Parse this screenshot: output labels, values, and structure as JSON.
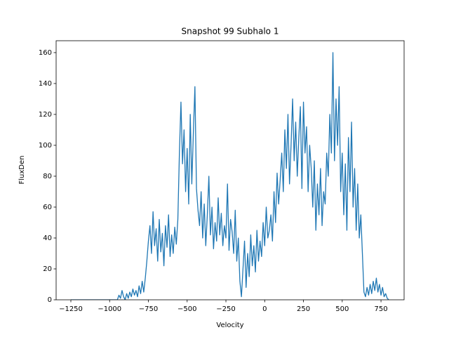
{
  "chart_data": {
    "type": "line",
    "title": "Snapshot 99 Subhalo 1",
    "xlabel": "Velocity",
    "ylabel": "FluxDen",
    "xlim": [
      -1345,
      899
    ],
    "ylim": [
      0,
      167.7
    ],
    "xticks": [
      {
        "value": -1250,
        "label": "−1250"
      },
      {
        "value": -1000,
        "label": "−1000"
      },
      {
        "value": -750,
        "label": "−750"
      },
      {
        "value": -500,
        "label": "−500"
      },
      {
        "value": -250,
        "label": "−250"
      },
      0,
      250,
      500,
      750
    ],
    "yticks": [
      0,
      20,
      40,
      60,
      80,
      100,
      120,
      140,
      160
    ],
    "series": [
      {
        "color": "#1f77b4",
        "x": [
          -1250,
          -1240,
          -1230,
          -1220,
          -1210,
          -1200,
          -1190,
          -1180,
          -1170,
          -1160,
          -1150,
          -1140,
          -1130,
          -1120,
          -1110,
          -1100,
          -1090,
          -1080,
          -1070,
          -1060,
          -1050,
          -1040,
          -1030,
          -1020,
          -1010,
          -1000,
          -990,
          -980,
          -970,
          -960,
          -950,
          -940,
          -930,
          -920,
          -910,
          -900,
          -890,
          -880,
          -870,
          -860,
          -850,
          -840,
          -830,
          -820,
          -810,
          -800,
          -790,
          -780,
          -770,
          -760,
          -750,
          -740,
          -730,
          -720,
          -710,
          -700,
          -690,
          -680,
          -670,
          -660,
          -650,
          -640,
          -630,
          -620,
          -610,
          -600,
          -590,
          -580,
          -570,
          -560,
          -550,
          -540,
          -530,
          -520,
          -510,
          -500,
          -490,
          -480,
          -470,
          -460,
          -450,
          -440,
          -430,
          -420,
          -410,
          -400,
          -390,
          -380,
          -370,
          -360,
          -350,
          -340,
          -330,
          -320,
          -310,
          -300,
          -290,
          -280,
          -270,
          -260,
          -250,
          -240,
          -230,
          -220,
          -210,
          -200,
          -190,
          -180,
          -170,
          -160,
          -150,
          -140,
          -130,
          -120,
          -110,
          -100,
          -90,
          -80,
          -70,
          -60,
          -50,
          -40,
          -30,
          -20,
          -10,
          0,
          10,
          20,
          30,
          40,
          50,
          60,
          70,
          80,
          90,
          100,
          110,
          120,
          130,
          140,
          150,
          160,
          170,
          180,
          190,
          200,
          210,
          220,
          230,
          240,
          250,
          260,
          270,
          280,
          290,
          300,
          310,
          320,
          330,
          340,
          350,
          360,
          370,
          380,
          390,
          400,
          410,
          420,
          430,
          440,
          450,
          460,
          470,
          480,
          490,
          500,
          510,
          520,
          530,
          540,
          550,
          560,
          570,
          580,
          590,
          600,
          610,
          620,
          630,
          640,
          650,
          660,
          670,
          680,
          690,
          700,
          710,
          720,
          730,
          740,
          750,
          760,
          770,
          780,
          790,
          800
        ],
        "values": [
          0,
          0,
          0,
          0,
          0,
          0,
          0,
          0,
          0,
          0,
          0,
          0,
          0,
          0,
          0,
          0,
          0,
          0,
          0,
          0,
          0,
          0,
          0,
          0,
          0,
          0,
          0,
          0,
          0,
          0,
          0,
          3,
          1,
          6,
          2,
          0,
          4,
          1,
          5,
          2,
          7,
          3,
          6,
          2,
          9,
          4,
          12,
          5,
          14,
          25,
          38,
          48,
          30,
          57,
          35,
          46,
          25,
          52,
          31,
          43,
          22,
          48,
          34,
          55,
          28,
          42,
          30,
          47,
          36,
          52,
          95,
          128,
          88,
          110,
          70,
          98,
          62,
          120,
          75,
          108,
          138,
          72,
          58,
          48,
          70,
          40,
          62,
          35,
          55,
          80,
          42,
          60,
          33,
          50,
          38,
          66,
          42,
          56,
          35,
          48,
          40,
          75,
          32,
          52,
          44,
          30,
          58,
          25,
          40,
          12,
          2,
          20,
          38,
          8,
          30,
          15,
          42,
          22,
          35,
          18,
          45,
          25,
          38,
          28,
          50,
          35,
          60,
          40,
          45,
          55,
          38,
          70,
          50,
          82,
          62,
          78,
          95,
          70,
          110,
          85,
          120,
          75,
          100,
          130,
          90,
          115,
          80,
          105,
          125,
          72,
          128,
          95,
          112,
          70,
          100,
          85,
          60,
          90,
          45,
          75,
          55,
          85,
          48,
          70,
          62,
          95,
          80,
          120,
          95,
          160,
          90,
          130,
          100,
          138,
          70,
          95,
          55,
          88,
          45,
          105,
          70,
          115,
          60,
          85,
          45,
          75,
          40,
          55,
          30,
          5,
          2,
          8,
          3,
          10,
          4,
          12,
          6,
          14,
          5,
          10,
          3,
          8,
          2,
          4,
          1,
          0
        ]
      }
    ]
  }
}
